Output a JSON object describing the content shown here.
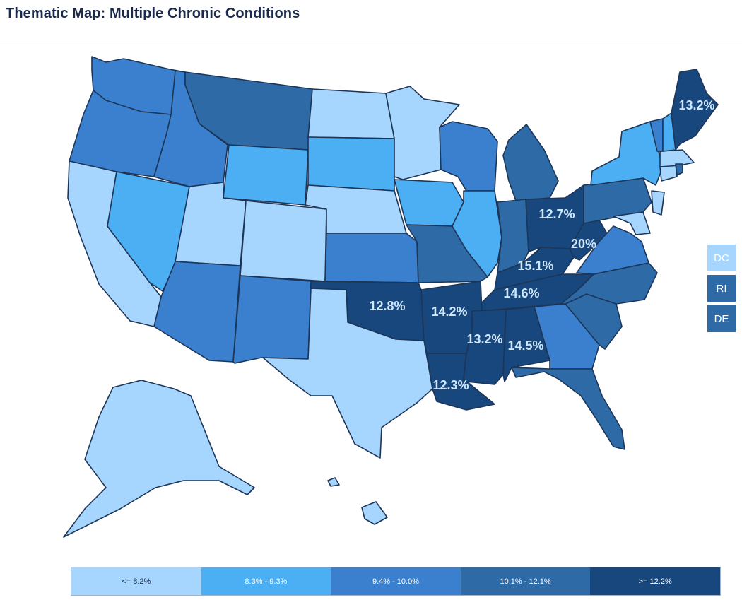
{
  "title": "Thematic Map: Multiple Chronic Conditions",
  "colors": {
    "c1": "#a6d5fd",
    "c2": "#4daff3",
    "c3": "#3a80cf",
    "c4": "#2d6aa6",
    "c5": "#17477c",
    "border": "#1d3557",
    "label": "#cfe8ff"
  },
  "legend": [
    {
      "label": "<= 8.2%",
      "color": "#a6d5fd"
    },
    {
      "label": "8.3% - 9.3%",
      "color": "#4daff3"
    },
    {
      "label": "9.4% - 10.0%",
      "color": "#3a80cf"
    },
    {
      "label": "10.1% - 12.1%",
      "color": "#2d6aa6"
    },
    {
      "label": ">= 12.2%",
      "color": "#17477c"
    }
  ],
  "small_states": [
    {
      "code": "DC",
      "color": "#a6d5fd"
    },
    {
      "code": "RI",
      "color": "#2d6aa6"
    },
    {
      "code": "DE",
      "color": "#2d6aa6"
    }
  ],
  "value_labels": {
    "ME": "13.2%",
    "OH": "12.7%",
    "WV": "20%",
    "KY": "15.1%",
    "TN": "14.6%",
    "OK": "12.8%",
    "AR": "14.2%",
    "MS": "13.2%",
    "AL": "14.5%",
    "LA": "12.3%"
  }
}
